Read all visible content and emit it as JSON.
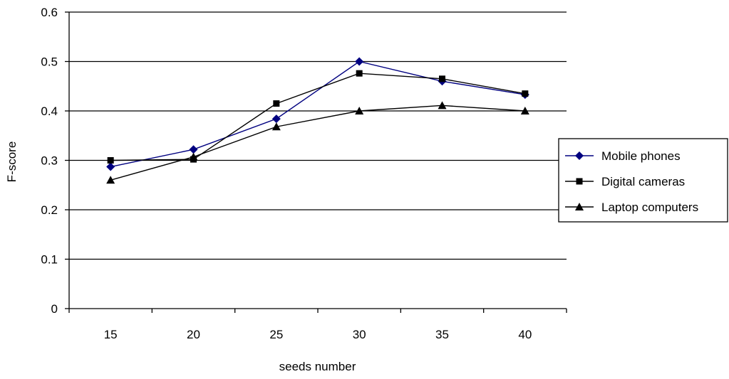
{
  "chart_data": {
    "type": "line",
    "title": "",
    "xlabel": "seeds number",
    "ylabel": "F-score",
    "categories": [
      "15",
      "20",
      "25",
      "30",
      "35",
      "40"
    ],
    "ylim": [
      0,
      0.6
    ],
    "yticks": [
      "0",
      "0.1",
      "0.2",
      "0.3",
      "0.4",
      "0.5",
      "0.6"
    ],
    "grid": "horizontal",
    "legend_position": "right",
    "series": [
      {
        "name": "Mobile phones",
        "values": [
          0.287,
          0.322,
          0.384,
          0.5,
          0.46,
          0.433
        ],
        "color": "#000080",
        "marker": "diamond"
      },
      {
        "name": "Digital cameras",
        "values": [
          0.3,
          0.302,
          0.415,
          0.476,
          0.465,
          0.435
        ],
        "color": "#000000",
        "marker": "square"
      },
      {
        "name": "Laptop computers",
        "values": [
          0.26,
          0.307,
          0.368,
          0.4,
          0.411,
          0.4
        ],
        "color": "#000000",
        "marker": "triangle"
      }
    ]
  }
}
